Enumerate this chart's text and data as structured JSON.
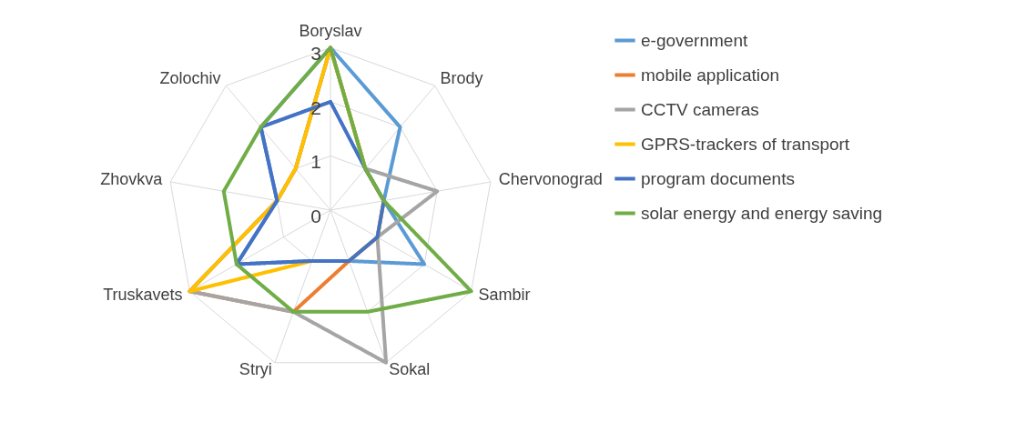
{
  "chart_data": {
    "type": "radar",
    "categories": [
      "Boryslav",
      "Brody",
      "Chervonograd",
      "Sambir",
      "Sokal",
      "Stryi",
      "Truskavets",
      "Zhovkva",
      "Zolochiv"
    ],
    "ylim": [
      0,
      3
    ],
    "yticks": [
      0,
      1,
      2,
      3
    ],
    "grid": true,
    "legend": "right",
    "line_style": "solid",
    "marker": "none",
    "series": [
      {
        "name": "e-government",
        "color": "#5b9bd5",
        "values": [
          3,
          2,
          1,
          2,
          1,
          1,
          2,
          1,
          2
        ]
      },
      {
        "name": "mobile application",
        "color": "#ed7d31",
        "values": [
          3,
          1,
          1,
          1,
          1,
          2,
          3,
          1,
          1
        ]
      },
      {
        "name": "CCTV cameras",
        "color": "#a5a5a5",
        "values": [
          3,
          1,
          2,
          1,
          3,
          2,
          3,
          1,
          1
        ]
      },
      {
        "name": "GPRS-trackers of transport",
        "color": "#ffc000",
        "values": [
          3,
          1,
          1,
          1,
          1,
          1,
          3,
          1,
          1
        ]
      },
      {
        "name": "program documents",
        "color": "#4472c4",
        "values": [
          2,
          1,
          1,
          1,
          1,
          1,
          2,
          1,
          2
        ]
      },
      {
        "name": "solar energy and energy saving",
        "color": "#70ad47",
        "values": [
          3,
          1,
          1,
          3,
          2,
          2,
          2,
          2,
          2
        ]
      }
    ]
  }
}
